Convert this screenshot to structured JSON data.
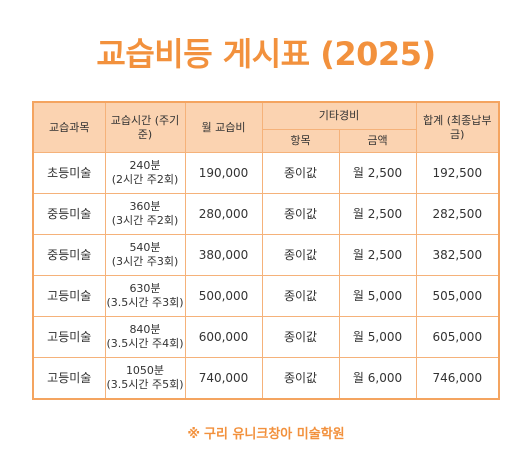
{
  "title": "교습비등 게시표 (2025)",
  "table": {
    "headers": {
      "subject": "교습과목",
      "time_line1": "교습시간",
      "time_line2": "(주기준)",
      "monthly_fee": "월 교습비",
      "other_fees": "기타경비",
      "item": "항목",
      "amount": "금액",
      "total_line1": "합계",
      "total_line2": "(최종납부금)"
    },
    "rows": [
      {
        "subject": "초등미술",
        "time_main": "240분",
        "time_sub": "(2시간 주2회)",
        "fee": "190,000",
        "item": "종이값",
        "amount": "월 2,500",
        "total": "192,500"
      },
      {
        "subject": "중등미술",
        "time_main": "360분",
        "time_sub": "(3시간 주2회)",
        "fee": "280,000",
        "item": "종이값",
        "amount": "월 2,500",
        "total": "282,500"
      },
      {
        "subject": "중등미술",
        "time_main": "540분",
        "time_sub": "(3시간 주3회)",
        "fee": "380,000",
        "item": "종이값",
        "amount": "월 2,500",
        "total": "382,500"
      },
      {
        "subject": "고등미술",
        "time_main": "630분",
        "time_sub": "(3.5시간 주3회)",
        "fee": "500,000",
        "item": "종이값",
        "amount": "월 5,000",
        "total": "505,000"
      },
      {
        "subject": "고등미술",
        "time_main": "840분",
        "time_sub": "(3.5시간 주4회)",
        "fee": "600,000",
        "item": "종이값",
        "amount": "월 5,000",
        "total": "605,000"
      },
      {
        "subject": "고등미술",
        "time_main": "1050분",
        "time_sub": "(3.5시간 주5회)",
        "fee": "740,000",
        "item": "종이값",
        "amount": "월 6,000",
        "total": "746,000"
      }
    ]
  },
  "footer": {
    "mark": "※",
    "text": "구리 유니크창아 미술학원"
  },
  "colors": {
    "accent": "#f2913d",
    "header_bg": "#fbd3b1",
    "border": "#f4a460"
  }
}
